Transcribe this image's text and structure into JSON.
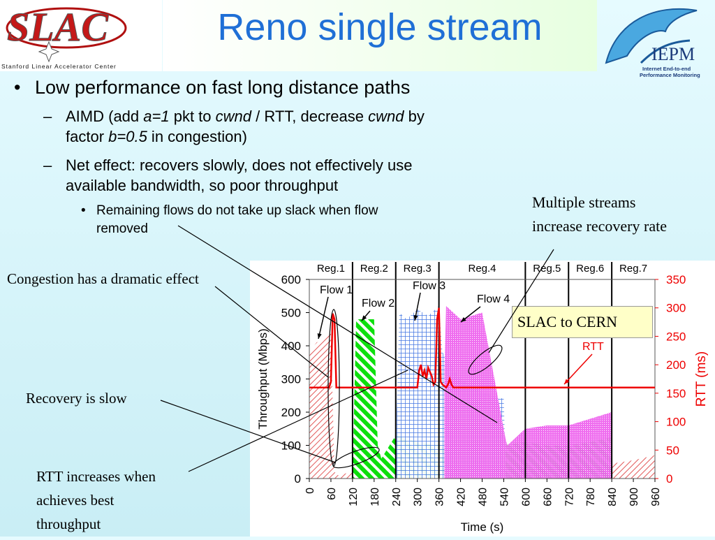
{
  "title": "Reno single stream",
  "logos": {
    "slac_wordmark": "SLAC",
    "slac_subtitle": "Stanford Linear Accelerator Center",
    "iepm_name": "IEPM",
    "iepm_line1": "Internet End-to-end",
    "iepm_line2": "Performance Monitoring"
  },
  "bullets": {
    "b1": "Low performance on fast long distance paths",
    "s1_a": "AIMD (add ",
    "s1_b": "a=1",
    "s1_c": " pkt to ",
    "s1_d": "cwnd",
    "s1_e": " / RTT, decrease ",
    "s1_f": "cwnd",
    "s1_g": " by",
    "s1_h": "factor ",
    "s1_i": "b=0.5",
    "s1_j": " in congestion)",
    "s2_l1": "Net effect: recovers slowly, does not effectively use",
    "s2_l2": "available bandwidth, so poor throughput",
    "ss1_l1": "Remaining flows do not take up slack when flow",
    "ss1_l2": "removed"
  },
  "annotations": {
    "multi_l1": "Multiple streams",
    "multi_l2": "increase recovery rate",
    "congestion": "Congestion has a dramatic effect",
    "recovery": "Recovery is slow",
    "rtt_l1": "RTT increases when",
    "rtt_l2": "achieves best",
    "rtt_l3": "throughput",
    "slac_cern": "SLAC to CERN"
  },
  "colors": {
    "title": "#1f6fd6",
    "flow1": "#e05050",
    "flow2": "#00dd00",
    "flow3": "#3a6fe0",
    "flow4": "#ee66ee",
    "rtt": "#ee0000"
  },
  "chart_data": {
    "type": "area",
    "xlabel": "Time (s)",
    "ylabel": "Throughput (Mbps)",
    "y2label": "RTT (ms)",
    "xlim": [
      0,
      960
    ],
    "ylim": [
      0,
      600
    ],
    "y2lim": [
      0,
      350
    ],
    "xticks": [
      "0",
      "60",
      "120",
      "180",
      "240",
      "300",
      "360",
      "420",
      "480",
      "540",
      "600",
      "660",
      "720",
      "780",
      "840",
      "900",
      "960"
    ],
    "yticks": [
      "0",
      "100",
      "200",
      "300",
      "400",
      "500",
      "600"
    ],
    "y2ticks": [
      "0",
      "50",
      "100",
      "150",
      "200",
      "250",
      "300",
      "350"
    ],
    "regions": [
      {
        "label": "Reg.1",
        "start": 0,
        "end": 120
      },
      {
        "label": "Reg.2",
        "start": 120,
        "end": 240
      },
      {
        "label": "Reg.3",
        "start": 240,
        "end": 360
      },
      {
        "label": "Reg.4",
        "start": 360,
        "end": 600
      },
      {
        "label": "Reg.5",
        "start": 600,
        "end": 720
      },
      {
        "label": "Reg.6",
        "start": 720,
        "end": 840
      },
      {
        "label": "Reg.7",
        "start": 840,
        "end": 960
      }
    ],
    "flow_labels": {
      "flow1": "Flow 1",
      "flow2": "Flow 2",
      "flow3": "Flow 3",
      "flow4": "Flow 4",
      "rtt": "RTT"
    },
    "series": [
      {
        "name": "Flow 1",
        "x": [
          0,
          20,
          40,
          60,
          70,
          80,
          120,
          180,
          240,
          300,
          360,
          420,
          480,
          540,
          600,
          660,
          720,
          780,
          840,
          900,
          960
        ],
        "y": [
          380,
          410,
          420,
          440,
          20,
          10,
          20,
          40,
          40,
          30,
          30,
          20,
          15,
          20,
          25,
          30,
          35,
          40,
          45,
          55,
          70
        ]
      },
      {
        "name": "Flow 2",
        "x": [
          120,
          130,
          180,
          190,
          200,
          240,
          300,
          360,
          420,
          480,
          540,
          600,
          660,
          720,
          780,
          840
        ],
        "y": [
          10,
          480,
          480,
          100,
          60,
          130,
          110,
          100,
          120,
          110,
          100,
          110,
          100,
          100,
          110,
          125
        ]
      },
      {
        "name": "Flow 3",
        "x": [
          240,
          250,
          270,
          300,
          330,
          360,
          370,
          420,
          480,
          540,
          545
        ],
        "y": [
          100,
          500,
          480,
          510,
          490,
          520,
          380,
          300,
          260,
          240,
          50
        ]
      },
      {
        "name": "Flow 4",
        "x": [
          375,
          380,
          420,
          480,
          545,
          550,
          600,
          660,
          720,
          780,
          840
        ],
        "y": [
          320,
          520,
          480,
          500,
          120,
          100,
          150,
          160,
          160,
          180,
          200
        ]
      },
      {
        "name": "RTT",
        "axis": "y2",
        "x": [
          0,
          55,
          60,
          65,
          70,
          75,
          300,
          305,
          310,
          315,
          320,
          325,
          330,
          340,
          345,
          350,
          355,
          360,
          365,
          370,
          380,
          385,
          390,
          395,
          400,
          420,
          440,
          480,
          540,
          960
        ],
        "y": [
          160,
          160,
          170,
          290,
          280,
          160,
          160,
          190,
          200,
          180,
          190,
          175,
          195,
          180,
          165,
          170,
          280,
          300,
          170,
          165,
          160,
          165,
          175,
          165,
          160,
          160,
          160,
          160,
          160,
          160
        ]
      }
    ]
  }
}
